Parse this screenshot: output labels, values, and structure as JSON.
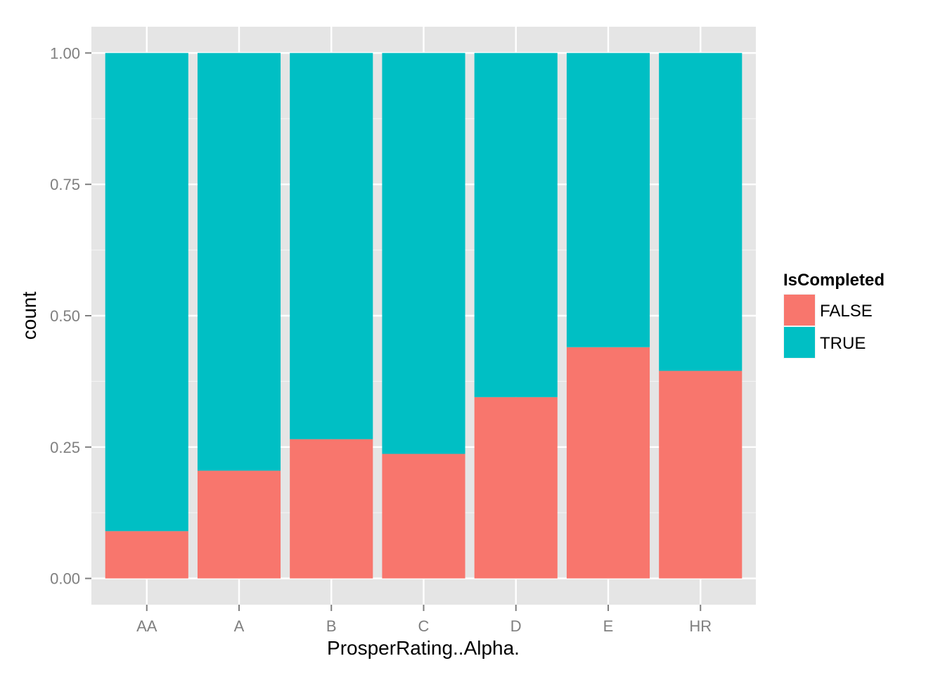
{
  "chart_data": {
    "type": "bar",
    "stacked": true,
    "title": "",
    "xlabel": "ProsperRating..Alpha.",
    "ylabel": "count",
    "categories": [
      "AA",
      "A",
      "B",
      "C",
      "D",
      "E",
      "HR"
    ],
    "series": [
      {
        "name": "FALSE",
        "color": "#F8766D",
        "values": [
          0.09,
          0.205,
          0.265,
          0.237,
          0.345,
          0.44,
          0.395
        ]
      },
      {
        "name": "TRUE",
        "color": "#00BFC4",
        "values": [
          0.91,
          0.795,
          0.735,
          0.763,
          0.655,
          0.56,
          0.605
        ]
      }
    ],
    "ylim": [
      -0.05,
      1.05
    ],
    "yticks": [
      0.0,
      0.25,
      0.5,
      0.75,
      1.0
    ],
    "ytick_labels": [
      "0.00",
      "0.25",
      "0.50",
      "0.75",
      "1.00"
    ],
    "grid": true,
    "panel_background": "#E5E5E5",
    "legend": {
      "title": "IsCompleted",
      "placement": "right"
    }
  }
}
